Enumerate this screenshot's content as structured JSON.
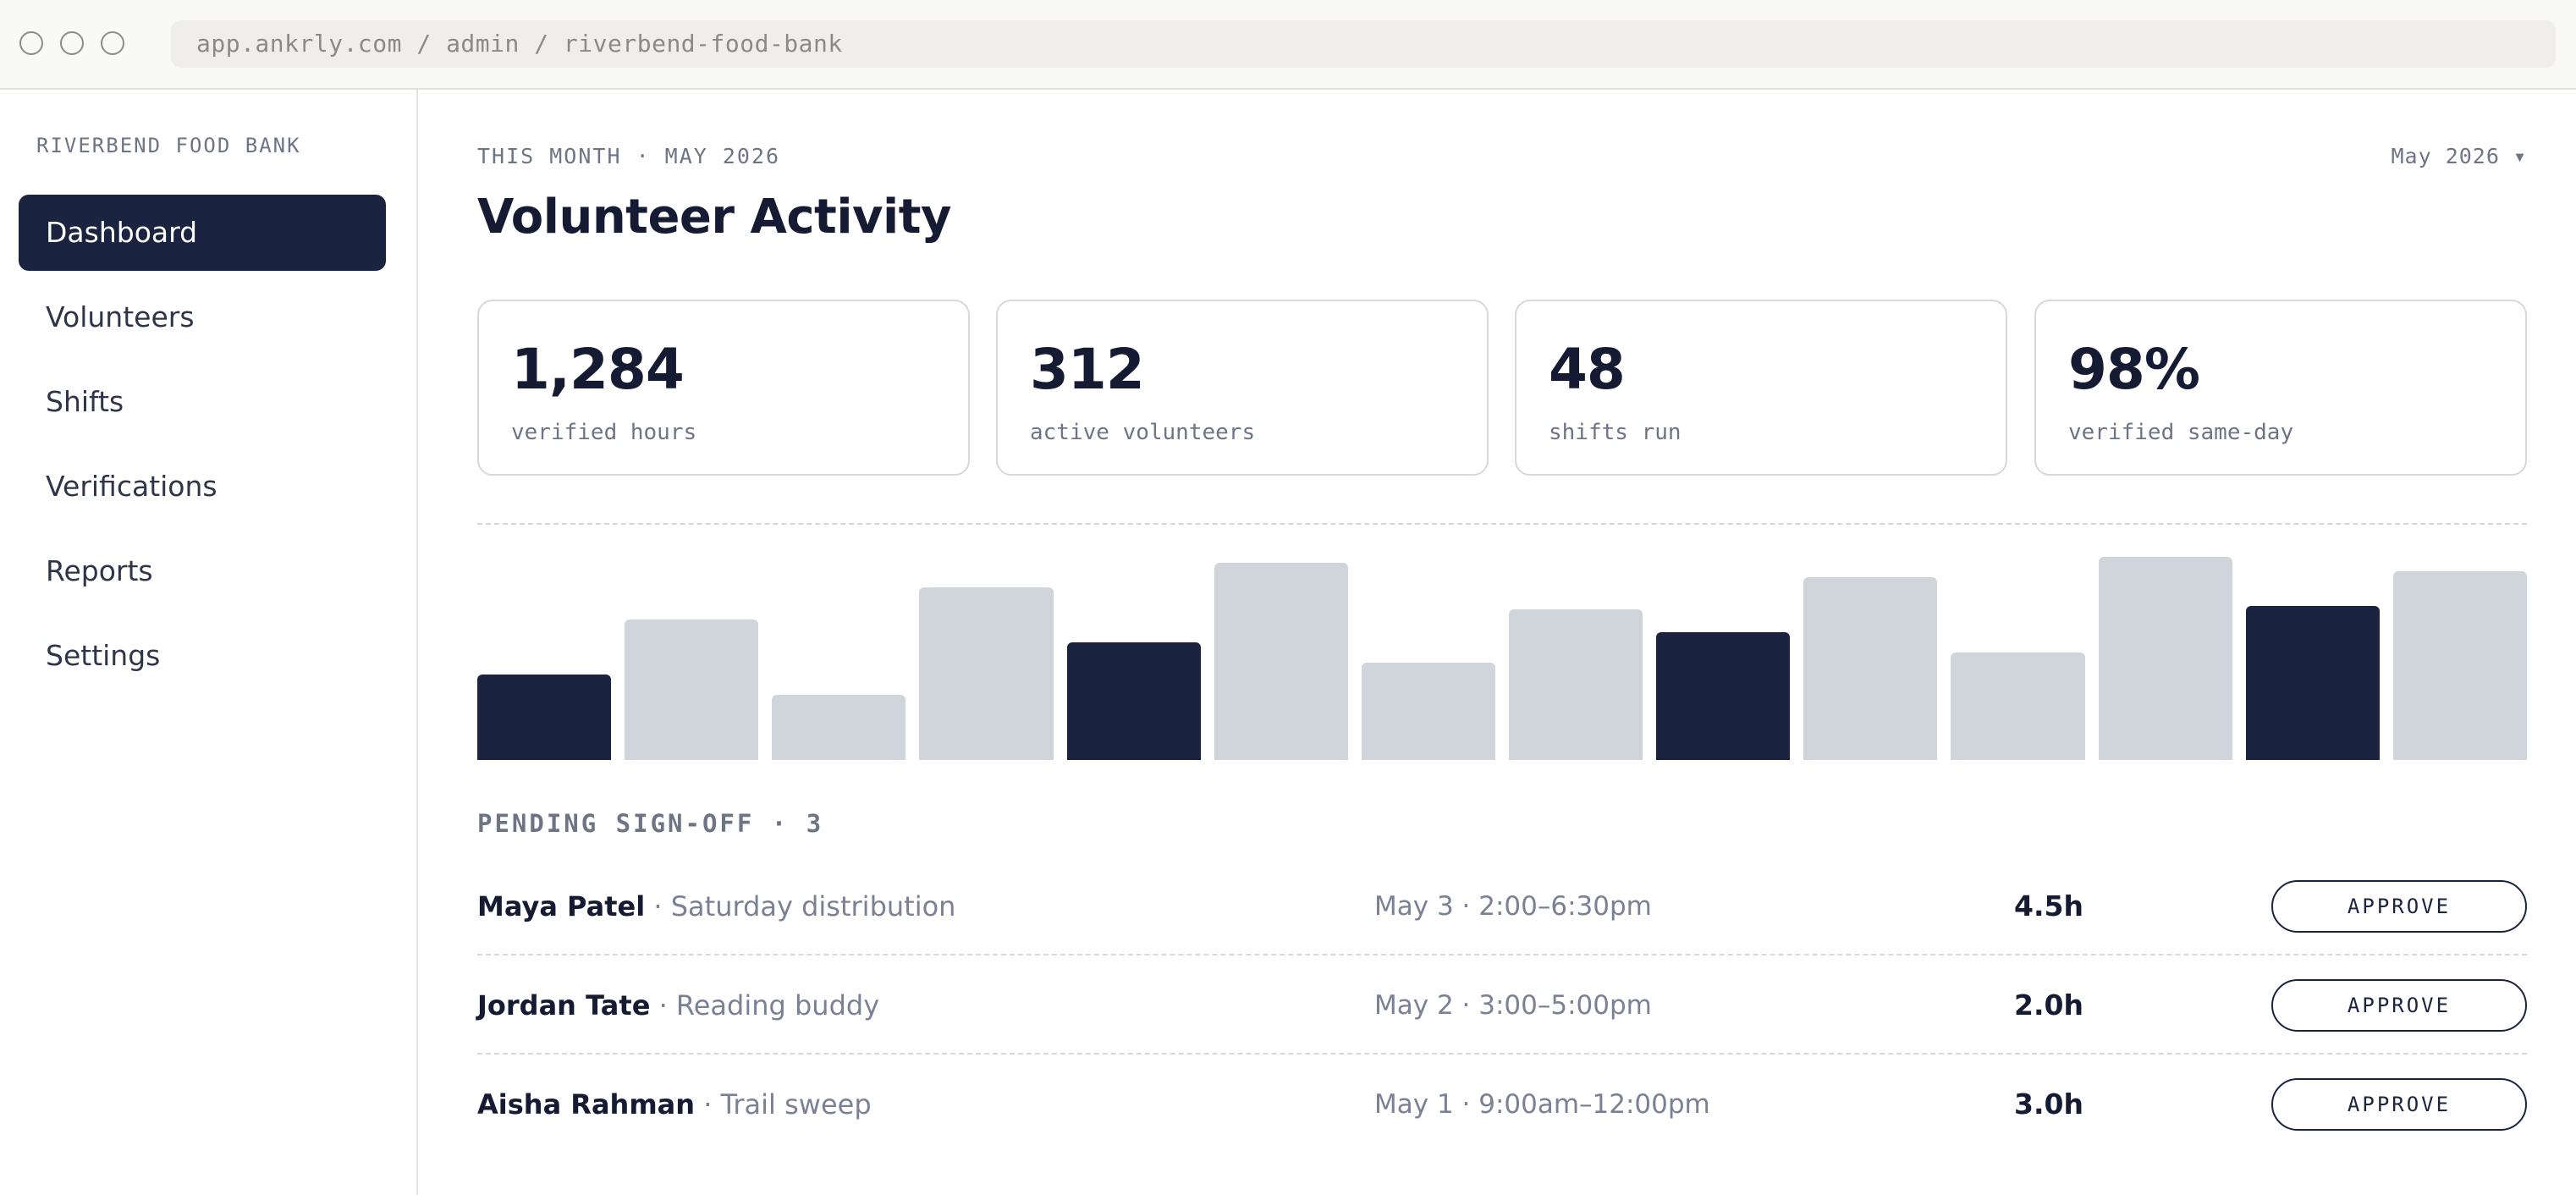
{
  "browser": {
    "url": "app.ankrly.com / admin / riverbend-food-bank"
  },
  "sidebar": {
    "org_name": "RIVERBEND FOOD BANK",
    "items": [
      {
        "label": "Dashboard",
        "active": true
      },
      {
        "label": "Volunteers",
        "active": false
      },
      {
        "label": "Shifts",
        "active": false
      },
      {
        "label": "Verifications",
        "active": false
      },
      {
        "label": "Reports",
        "active": false
      },
      {
        "label": "Settings",
        "active": false
      }
    ]
  },
  "header": {
    "eyebrow": "THIS MONTH · MAY 2026",
    "title": "Volunteer Activity",
    "month_picker": "May 2026 ▾"
  },
  "stats": [
    {
      "value": "1,284",
      "label": "verified hours"
    },
    {
      "value": "312",
      "label": "active volunteers"
    },
    {
      "value": "48",
      "label": "shifts run"
    },
    {
      "value": "98%",
      "label": "verified same-day"
    }
  ],
  "chart_data": {
    "type": "bar",
    "values": [
      0.42,
      0.69,
      0.32,
      0.85,
      0.58,
      0.97,
      0.48,
      0.74,
      0.63,
      0.9,
      0.53,
      1.0,
      0.76,
      0.93
    ],
    "highlighted": [
      true,
      false,
      false,
      false,
      true,
      false,
      false,
      false,
      true,
      false,
      false,
      false,
      true,
      false
    ],
    "colors": {
      "highlight": "#1a2340",
      "default": "#d0d4db"
    },
    "grid": false,
    "xlabel": "",
    "ylabel": ""
  },
  "pending": {
    "heading": "PENDING SIGN-OFF · 3",
    "rows": [
      {
        "name": "Maya Patel",
        "task": "Saturday distribution",
        "when": "May 3 · 2:00–6:30pm",
        "hours": "4.5h",
        "action": "APPROVE"
      },
      {
        "name": "Jordan Tate",
        "task": "Reading buddy",
        "when": "May 2 · 3:00–5:00pm",
        "hours": "2.0h",
        "action": "APPROVE"
      },
      {
        "name": "Aisha Rahman",
        "task": "Trail sweep",
        "when": "May 1 · 9:00am–12:00pm",
        "hours": "3.0h",
        "action": "APPROVE"
      }
    ]
  },
  "colors": {
    "accent": "#1a2340",
    "muted_text": "#7b8194",
    "bar_inactive": "#d0d4db"
  }
}
